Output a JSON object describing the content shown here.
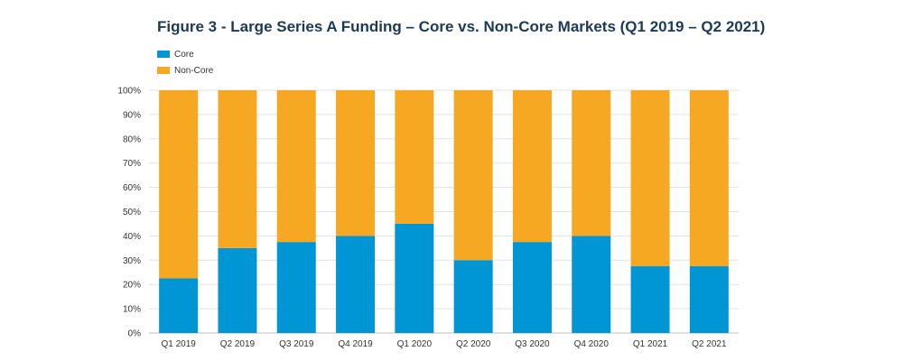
{
  "chart_data": {
    "type": "bar",
    "stacked": true,
    "percent_stacked": true,
    "title": "Figure 3 - Large Series A Funding – Core vs. Non-Core Markets (Q1 2019 – Q2 2021)",
    "xlabel": "",
    "ylabel": "",
    "categories": [
      "Q1 2019",
      "Q2 2019",
      "Q3 2019",
      "Q4 2019",
      "Q1 2020",
      "Q2 2020",
      "Q3 2020",
      "Q4 2020",
      "Q1 2021",
      "Q2 2021"
    ],
    "series": [
      {
        "name": "Core",
        "color": "#0096d6",
        "values": [
          22.5,
          35,
          37.5,
          40,
          45,
          30,
          37.5,
          40,
          27.5,
          27.5
        ]
      },
      {
        "name": "Non-Core",
        "color": "#f7a823",
        "values": [
          77.5,
          65,
          62.5,
          60,
          55,
          70,
          62.5,
          60,
          72.5,
          72.5
        ]
      }
    ],
    "ylim": [
      0,
      100
    ],
    "yticks": [
      "0%",
      "10%",
      "20%",
      "30%",
      "40%",
      "50%",
      "60%",
      "70%",
      "80%",
      "90%",
      "100%"
    ],
    "grid": true,
    "legend_position": "top-left"
  }
}
